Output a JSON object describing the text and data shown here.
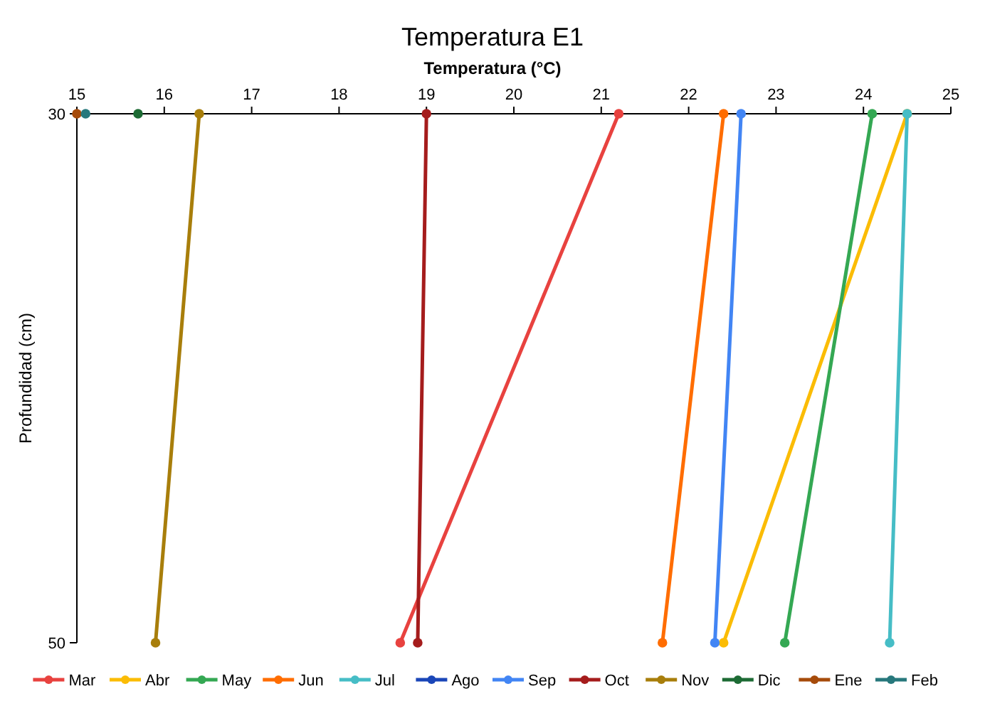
{
  "chart_data": {
    "type": "line",
    "title": "Temperatura E1",
    "xlabel": "Temperatura (°C)",
    "ylabel": "Profundidad (cm)",
    "xlim": [
      15,
      25
    ],
    "xticks": [
      15,
      16,
      17,
      18,
      19,
      20,
      21,
      22,
      23,
      24,
      25
    ],
    "ylim": [
      50,
      30
    ],
    "yticks": [
      30,
      50
    ],
    "grid": false,
    "legend": "bottom",
    "marker": "circle",
    "line_style": "solid",
    "series": [
      {
        "name": "Mar",
        "color": "#e8423f",
        "x": [
          21.2,
          18.7
        ],
        "values": [
          30,
          50
        ]
      },
      {
        "name": "Abr",
        "color": "#fbbc05",
        "x": [
          24.5,
          22.4
        ],
        "values": [
          30,
          50
        ]
      },
      {
        "name": "May",
        "color": "#34a853",
        "x": [
          24.1,
          23.1
        ],
        "values": [
          30,
          50
        ]
      },
      {
        "name": "Jun",
        "color": "#ff6d01",
        "x": [
          22.4,
          21.7
        ],
        "values": [
          30,
          50
        ]
      },
      {
        "name": "Jul",
        "color": "#46bdc6",
        "x": [
          24.5,
          24.3
        ],
        "values": [
          30,
          50
        ]
      },
      {
        "name": "Ago",
        "color": "#1a46b8"
      },
      {
        "name": "Sep",
        "color": "#4285f4",
        "x": [
          22.6,
          22.3
        ],
        "values": [
          30,
          50
        ]
      },
      {
        "name": "Oct",
        "color": "#a51c1c",
        "x": [
          19.0,
          18.9
        ],
        "values": [
          30,
          50
        ]
      },
      {
        "name": "Nov",
        "color": "#a87e0b",
        "x": [
          16.4,
          15.9
        ],
        "values": [
          30,
          50
        ]
      },
      {
        "name": "Dic",
        "color": "#1d6b34",
        "x": [
          15.7
        ],
        "values": [
          30
        ]
      },
      {
        "name": "Ene",
        "color": "#a64b0a",
        "x": [
          15.0
        ],
        "values": [
          30
        ]
      },
      {
        "name": "Feb",
        "color": "#27787c",
        "x": [
          15.1
        ],
        "values": [
          30
        ]
      }
    ]
  }
}
